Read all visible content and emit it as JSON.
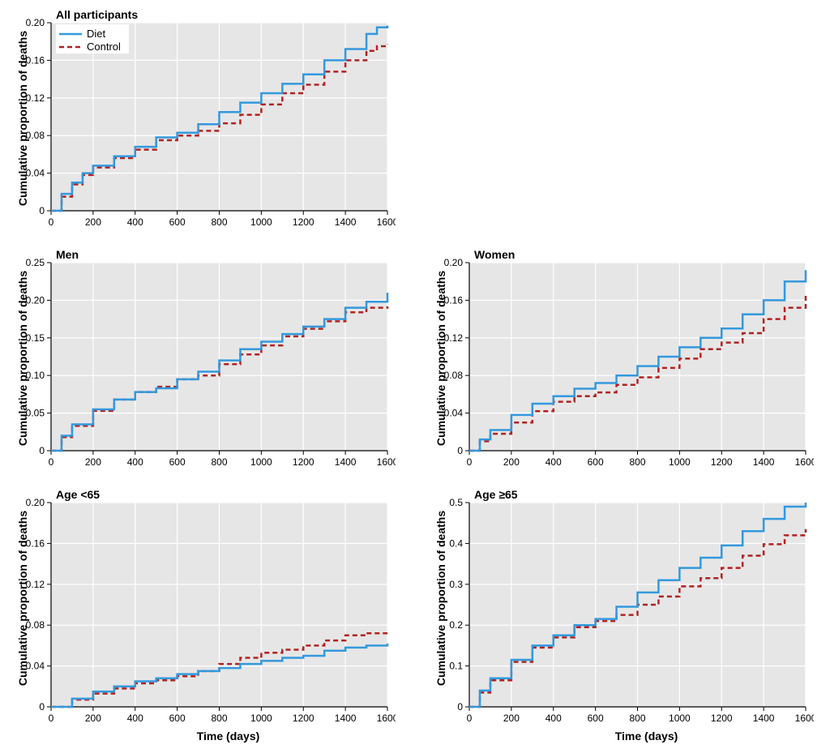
{
  "global": {
    "y_axis_label": "Cumulative proportion of deaths",
    "x_axis_label": "Time (days)",
    "plot_bg": "#e6e6e6",
    "grid_color": "#ffffff",
    "axis_color": "#000000",
    "series": {
      "diet": {
        "label": "Diet",
        "color": "#3399dd",
        "dash": "none",
        "width": 2.5
      },
      "control": {
        "label": "Control",
        "color": "#b22222",
        "dash": "6,4",
        "width": 2.5
      }
    },
    "xlim": [
      0,
      1600
    ],
    "xtick_step": 200,
    "font": {
      "title_size": 14,
      "tick_size": 12
    }
  },
  "panels": [
    {
      "id": "all",
      "title": "All participants",
      "row": 1,
      "col": 1,
      "show_legend": true,
      "ylim": [
        0,
        0.2
      ],
      "ytick_step": 0.04,
      "show_x_label": false,
      "diet": {
        "x": [
          0,
          50,
          100,
          150,
          200,
          300,
          400,
          500,
          600,
          700,
          800,
          900,
          1000,
          1100,
          1200,
          1300,
          1400,
          1500,
          1550,
          1600
        ],
        "y": [
          0,
          0.018,
          0.03,
          0.04,
          0.048,
          0.058,
          0.068,
          0.078,
          0.083,
          0.092,
          0.105,
          0.115,
          0.125,
          0.135,
          0.145,
          0.16,
          0.172,
          0.188,
          0.195,
          0.197
        ]
      },
      "control": {
        "x": [
          0,
          50,
          100,
          150,
          200,
          300,
          400,
          500,
          600,
          700,
          800,
          900,
          1000,
          1100,
          1200,
          1300,
          1400,
          1500,
          1550,
          1600
        ],
        "y": [
          0,
          0.015,
          0.028,
          0.038,
          0.046,
          0.056,
          0.065,
          0.075,
          0.08,
          0.085,
          0.093,
          0.102,
          0.113,
          0.125,
          0.134,
          0.148,
          0.16,
          0.17,
          0.175,
          0.177
        ]
      }
    },
    {
      "id": "men",
      "title": "Men",
      "row": 2,
      "col": 1,
      "show_legend": false,
      "ylim": [
        0,
        0.25
      ],
      "ytick_step": 0.05,
      "show_x_label": false,
      "diet": {
        "x": [
          0,
          50,
          100,
          200,
          300,
          400,
          500,
          600,
          700,
          800,
          900,
          1000,
          1100,
          1200,
          1300,
          1400,
          1500,
          1600
        ],
        "y": [
          0,
          0.02,
          0.035,
          0.055,
          0.068,
          0.078,
          0.083,
          0.095,
          0.105,
          0.12,
          0.135,
          0.145,
          0.155,
          0.165,
          0.175,
          0.19,
          0.198,
          0.21
        ]
      },
      "control": {
        "x": [
          0,
          50,
          100,
          200,
          300,
          400,
          500,
          600,
          700,
          800,
          900,
          1000,
          1100,
          1200,
          1300,
          1400,
          1500,
          1600
        ],
        "y": [
          0,
          0.018,
          0.033,
          0.053,
          0.068,
          0.078,
          0.085,
          0.095,
          0.1,
          0.115,
          0.128,
          0.14,
          0.152,
          0.162,
          0.172,
          0.184,
          0.19,
          0.192
        ]
      }
    },
    {
      "id": "women",
      "title": "Women",
      "row": 2,
      "col": 2,
      "show_legend": false,
      "ylim": [
        0,
        0.2
      ],
      "ytick_step": 0.04,
      "show_x_label": false,
      "diet": {
        "x": [
          0,
          50,
          100,
          200,
          300,
          400,
          500,
          600,
          700,
          800,
          900,
          1000,
          1100,
          1200,
          1300,
          1400,
          1500,
          1600
        ],
        "y": [
          0,
          0.012,
          0.022,
          0.038,
          0.05,
          0.058,
          0.066,
          0.072,
          0.08,
          0.09,
          0.1,
          0.11,
          0.12,
          0.13,
          0.145,
          0.16,
          0.18,
          0.192
        ]
      },
      "control": {
        "x": [
          0,
          50,
          100,
          200,
          300,
          400,
          500,
          600,
          700,
          800,
          900,
          1000,
          1100,
          1200,
          1300,
          1400,
          1500,
          1600
        ],
        "y": [
          0,
          0.01,
          0.018,
          0.03,
          0.042,
          0.052,
          0.058,
          0.062,
          0.07,
          0.078,
          0.088,
          0.098,
          0.108,
          0.115,
          0.125,
          0.14,
          0.152,
          0.165
        ]
      }
    },
    {
      "id": "ageunder65",
      "title": "Age <65",
      "row": 3,
      "col": 1,
      "show_legend": false,
      "ylim": [
        0,
        0.2
      ],
      "ytick_step": 0.04,
      "show_x_label": true,
      "diet": {
        "x": [
          0,
          100,
          200,
          300,
          400,
          500,
          600,
          700,
          800,
          900,
          1000,
          1100,
          1200,
          1300,
          1400,
          1500,
          1600
        ],
        "y": [
          0,
          0.008,
          0.015,
          0.02,
          0.025,
          0.028,
          0.032,
          0.035,
          0.038,
          0.042,
          0.045,
          0.048,
          0.05,
          0.055,
          0.058,
          0.06,
          0.062
        ]
      },
      "control": {
        "x": [
          0,
          100,
          200,
          300,
          400,
          500,
          600,
          700,
          800,
          900,
          1000,
          1100,
          1200,
          1300,
          1400,
          1500,
          1600
        ],
        "y": [
          0,
          0.007,
          0.013,
          0.018,
          0.023,
          0.026,
          0.03,
          0.035,
          0.042,
          0.048,
          0.053,
          0.056,
          0.06,
          0.065,
          0.07,
          0.072,
          0.072
        ]
      }
    },
    {
      "id": "age65plus",
      "title": "Age ≥65",
      "row": 3,
      "col": 2,
      "show_legend": false,
      "ylim": [
        0,
        0.5
      ],
      "ytick_step": 0.1,
      "show_x_label": true,
      "diet": {
        "x": [
          0,
          50,
          100,
          200,
          300,
          400,
          500,
          600,
          700,
          800,
          900,
          1000,
          1100,
          1200,
          1300,
          1400,
          1500,
          1600
        ],
        "y": [
          0,
          0.04,
          0.07,
          0.115,
          0.15,
          0.175,
          0.2,
          0.215,
          0.245,
          0.28,
          0.31,
          0.34,
          0.365,
          0.395,
          0.43,
          0.46,
          0.49,
          0.5
        ]
      },
      "control": {
        "x": [
          0,
          50,
          100,
          200,
          300,
          400,
          500,
          600,
          700,
          800,
          900,
          1000,
          1100,
          1200,
          1300,
          1400,
          1500,
          1600
        ],
        "y": [
          0,
          0.035,
          0.065,
          0.11,
          0.145,
          0.17,
          0.195,
          0.21,
          0.225,
          0.25,
          0.27,
          0.295,
          0.315,
          0.34,
          0.37,
          0.398,
          0.42,
          0.435
        ]
      }
    }
  ]
}
